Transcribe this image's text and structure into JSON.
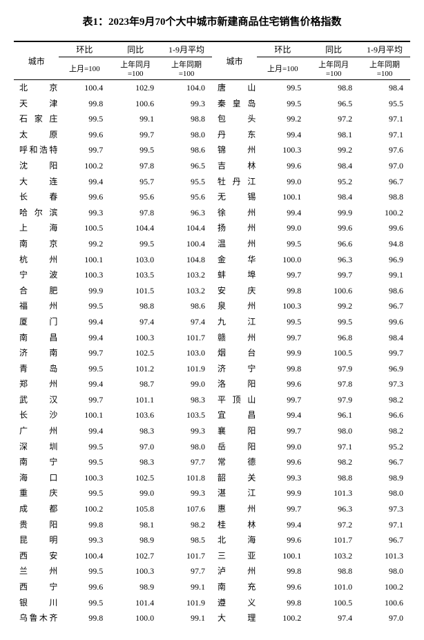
{
  "title": "表1：2023年9月70个大中城市新建商品住宅销售价格指数",
  "headers": {
    "city": "城市",
    "mom": "环比",
    "yoy": "同比",
    "avg": "1-9月平均",
    "sub_mom": "上月=100",
    "sub_yoy": "上年同月=100",
    "sub_avg": "上年同期=100"
  },
  "left": [
    {
      "c": "北　　京",
      "v": [
        "100.4",
        "102.9",
        "104.0"
      ]
    },
    {
      "c": "天　　津",
      "v": [
        "99.8",
        "100.6",
        "99.3"
      ]
    },
    {
      "c": "石 家 庄",
      "v": [
        "99.5",
        "99.1",
        "98.8"
      ]
    },
    {
      "c": "太　　原",
      "v": [
        "99.6",
        "99.7",
        "98.0"
      ]
    },
    {
      "c": "呼和浩特",
      "v": [
        "99.7",
        "99.5",
        "98.6"
      ]
    },
    {
      "c": "沈　　阳",
      "v": [
        "100.2",
        "97.8",
        "96.5"
      ]
    },
    {
      "c": "大　　连",
      "v": [
        "99.4",
        "95.7",
        "95.5"
      ]
    },
    {
      "c": "长　　春",
      "v": [
        "99.6",
        "95.6",
        "95.6"
      ]
    },
    {
      "c": "哈 尔 滨",
      "v": [
        "99.3",
        "97.8",
        "96.3"
      ]
    },
    {
      "c": "上　　海",
      "v": [
        "100.5",
        "104.4",
        "104.4"
      ]
    },
    {
      "c": "南　　京",
      "v": [
        "99.2",
        "99.5",
        "100.4"
      ]
    },
    {
      "c": "杭　　州",
      "v": [
        "100.1",
        "103.0",
        "104.8"
      ]
    },
    {
      "c": "宁　　波",
      "v": [
        "100.3",
        "103.5",
        "103.2"
      ]
    },
    {
      "c": "合　　肥",
      "v": [
        "99.9",
        "101.5",
        "103.2"
      ]
    },
    {
      "c": "福　　州",
      "v": [
        "99.5",
        "98.8",
        "98.6"
      ]
    },
    {
      "c": "厦　　门",
      "v": [
        "99.4",
        "97.4",
        "97.4"
      ]
    },
    {
      "c": "南　　昌",
      "v": [
        "99.4",
        "100.3",
        "101.7"
      ]
    },
    {
      "c": "济　　南",
      "v": [
        "99.7",
        "102.5",
        "103.0"
      ]
    },
    {
      "c": "青　　岛",
      "v": [
        "99.5",
        "101.2",
        "101.9"
      ]
    },
    {
      "c": "郑　　州",
      "v": [
        "99.4",
        "98.7",
        "99.0"
      ]
    },
    {
      "c": "武　　汉",
      "v": [
        "99.7",
        "101.1",
        "98.3"
      ]
    },
    {
      "c": "长　　沙",
      "v": [
        "100.1",
        "103.6",
        "103.5"
      ]
    },
    {
      "c": "广　　州",
      "v": [
        "99.4",
        "98.3",
        "99.3"
      ]
    },
    {
      "c": "深　　圳",
      "v": [
        "99.5",
        "97.0",
        "98.0"
      ]
    },
    {
      "c": "南　　宁",
      "v": [
        "99.5",
        "98.3",
        "97.7"
      ]
    },
    {
      "c": "海　　口",
      "v": [
        "100.3",
        "102.5",
        "101.8"
      ]
    },
    {
      "c": "重　　庆",
      "v": [
        "99.5",
        "99.0",
        "99.3"
      ]
    },
    {
      "c": "成　　都",
      "v": [
        "100.2",
        "105.8",
        "107.6"
      ]
    },
    {
      "c": "贵　　阳",
      "v": [
        "99.8",
        "98.1",
        "98.2"
      ]
    },
    {
      "c": "昆　　明",
      "v": [
        "99.3",
        "98.9",
        "98.5"
      ]
    },
    {
      "c": "西　　安",
      "v": [
        "100.4",
        "102.7",
        "101.7"
      ]
    },
    {
      "c": "兰　　州",
      "v": [
        "99.5",
        "100.3",
        "97.7"
      ]
    },
    {
      "c": "西　　宁",
      "v": [
        "99.6",
        "98.9",
        "99.1"
      ]
    },
    {
      "c": "银　　川",
      "v": [
        "99.5",
        "101.4",
        "101.9"
      ]
    },
    {
      "c": "乌鲁木齐",
      "v": [
        "99.8",
        "100.0",
        "99.1"
      ]
    }
  ],
  "right": [
    {
      "c": "唐　　山",
      "v": [
        "99.5",
        "98.8",
        "98.4"
      ]
    },
    {
      "c": "秦 皇 岛",
      "v": [
        "99.5",
        "96.5",
        "95.5"
      ]
    },
    {
      "c": "包　　头",
      "v": [
        "99.2",
        "97.2",
        "97.1"
      ]
    },
    {
      "c": "丹　　东",
      "v": [
        "99.4",
        "98.1",
        "97.1"
      ]
    },
    {
      "c": "锦　　州",
      "v": [
        "100.3",
        "99.2",
        "97.6"
      ]
    },
    {
      "c": "吉　　林",
      "v": [
        "99.6",
        "98.4",
        "97.0"
      ]
    },
    {
      "c": "牡 丹 江",
      "v": [
        "99.0",
        "95.2",
        "96.7"
      ]
    },
    {
      "c": "无　　锡",
      "v": [
        "100.1",
        "98.4",
        "98.8"
      ]
    },
    {
      "c": "徐　　州",
      "v": [
        "99.4",
        "99.9",
        "100.2"
      ]
    },
    {
      "c": "扬　　州",
      "v": [
        "99.0",
        "99.6",
        "99.6"
      ]
    },
    {
      "c": "温　　州",
      "v": [
        "99.5",
        "96.6",
        "94.8"
      ]
    },
    {
      "c": "金　　华",
      "v": [
        "100.0",
        "96.3",
        "96.9"
      ]
    },
    {
      "c": "蚌　　埠",
      "v": [
        "99.7",
        "99.7",
        "99.1"
      ]
    },
    {
      "c": "安　　庆",
      "v": [
        "99.8",
        "100.6",
        "98.6"
      ]
    },
    {
      "c": "泉　　州",
      "v": [
        "100.3",
        "99.2",
        "96.7"
      ]
    },
    {
      "c": "九　　江",
      "v": [
        "99.5",
        "99.5",
        "99.6"
      ]
    },
    {
      "c": "赣　　州",
      "v": [
        "99.7",
        "96.8",
        "98.4"
      ]
    },
    {
      "c": "烟　　台",
      "v": [
        "99.9",
        "100.5",
        "99.7"
      ]
    },
    {
      "c": "济　　宁",
      "v": [
        "99.8",
        "97.9",
        "96.9"
      ]
    },
    {
      "c": "洛　　阳",
      "v": [
        "99.6",
        "97.8",
        "97.3"
      ]
    },
    {
      "c": "平 顶 山",
      "v": [
        "99.7",
        "97.9",
        "98.2"
      ]
    },
    {
      "c": "宜　　昌",
      "v": [
        "99.4",
        "96.1",
        "96.6"
      ]
    },
    {
      "c": "襄　　阳",
      "v": [
        "99.7",
        "98.0",
        "98.2"
      ]
    },
    {
      "c": "岳　　阳",
      "v": [
        "99.0",
        "97.1",
        "95.2"
      ]
    },
    {
      "c": "常　　德",
      "v": [
        "99.6",
        "98.2",
        "96.7"
      ]
    },
    {
      "c": "韶　　关",
      "v": [
        "99.3",
        "98.8",
        "98.9"
      ]
    },
    {
      "c": "湛　　江",
      "v": [
        "99.9",
        "101.3",
        "98.0"
      ]
    },
    {
      "c": "惠　　州",
      "v": [
        "99.7",
        "96.3",
        "97.3"
      ]
    },
    {
      "c": "桂　　林",
      "v": [
        "99.4",
        "97.2",
        "97.1"
      ]
    },
    {
      "c": "北　　海",
      "v": [
        "99.6",
        "101.7",
        "96.7"
      ]
    },
    {
      "c": "三　　亚",
      "v": [
        "100.1",
        "103.2",
        "101.3"
      ]
    },
    {
      "c": "泸　　州",
      "v": [
        "99.8",
        "98.8",
        "98.0"
      ]
    },
    {
      "c": "南　　充",
      "v": [
        "99.6",
        "101.0",
        "100.2"
      ]
    },
    {
      "c": "遵　　义",
      "v": [
        "99.8",
        "100.5",
        "100.6"
      ]
    },
    {
      "c": "大　　理",
      "v": [
        "100.2",
        "97.4",
        "97.0"
      ]
    }
  ]
}
